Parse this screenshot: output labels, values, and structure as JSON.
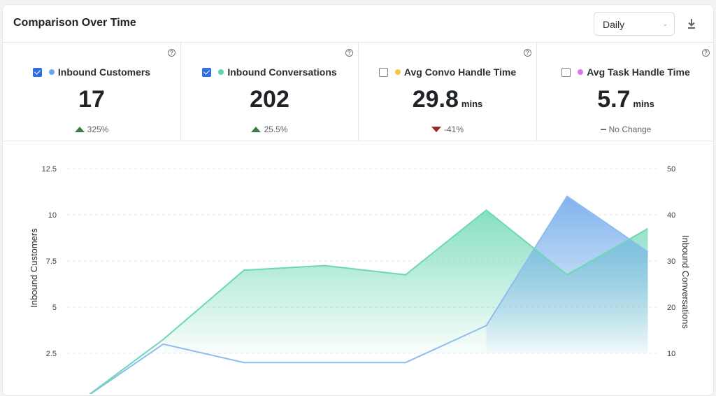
{
  "header": {
    "title": "Comparison Over Time",
    "granularity": "Daily"
  },
  "kpis": [
    {
      "label": "Inbound Customers",
      "checked": true,
      "color": "#6aa6ea",
      "value": "17",
      "unit": "",
      "change": "325%",
      "trend": "up"
    },
    {
      "label": "Inbound Conversations",
      "checked": true,
      "color": "#5fd4ae",
      "value": "202",
      "unit": "",
      "change": "25.5%",
      "trend": "up"
    },
    {
      "label": "Avg Convo Handle Time",
      "checked": false,
      "color": "#f4c542",
      "value": "29.8",
      "unit": "mins",
      "change": "-41%",
      "trend": "down"
    },
    {
      "label": "Avg Task Handle Time",
      "checked": false,
      "color": "#d47be8",
      "value": "5.7",
      "unit": "mins",
      "change": "No Change",
      "trend": "flat"
    }
  ],
  "chart_data": {
    "type": "area",
    "x": [
      0,
      1,
      2,
      3,
      4,
      5,
      6,
      7
    ],
    "ylabel_left": "Inbound Customers",
    "ylabel_right": "Inbound Conversations",
    "left_ticks": [
      "12.5",
      "10",
      "7.5",
      "5",
      "2.5"
    ],
    "right_ticks": [
      "50",
      "40",
      "30",
      "20",
      "10"
    ],
    "ylim_left": [
      0,
      12.5
    ],
    "ylim_right": [
      0,
      50
    ],
    "grid": true,
    "series": [
      {
        "name": "Inbound Customers",
        "axis": "left",
        "color": "#6aa6ea",
        "values": [
          0,
          3,
          2,
          2,
          2,
          4,
          11,
          8
        ]
      },
      {
        "name": "Inbound Conversations",
        "axis": "right",
        "color": "#5fd4ae",
        "values": [
          0,
          13,
          28,
          29,
          27,
          41,
          27,
          37
        ]
      }
    ]
  }
}
